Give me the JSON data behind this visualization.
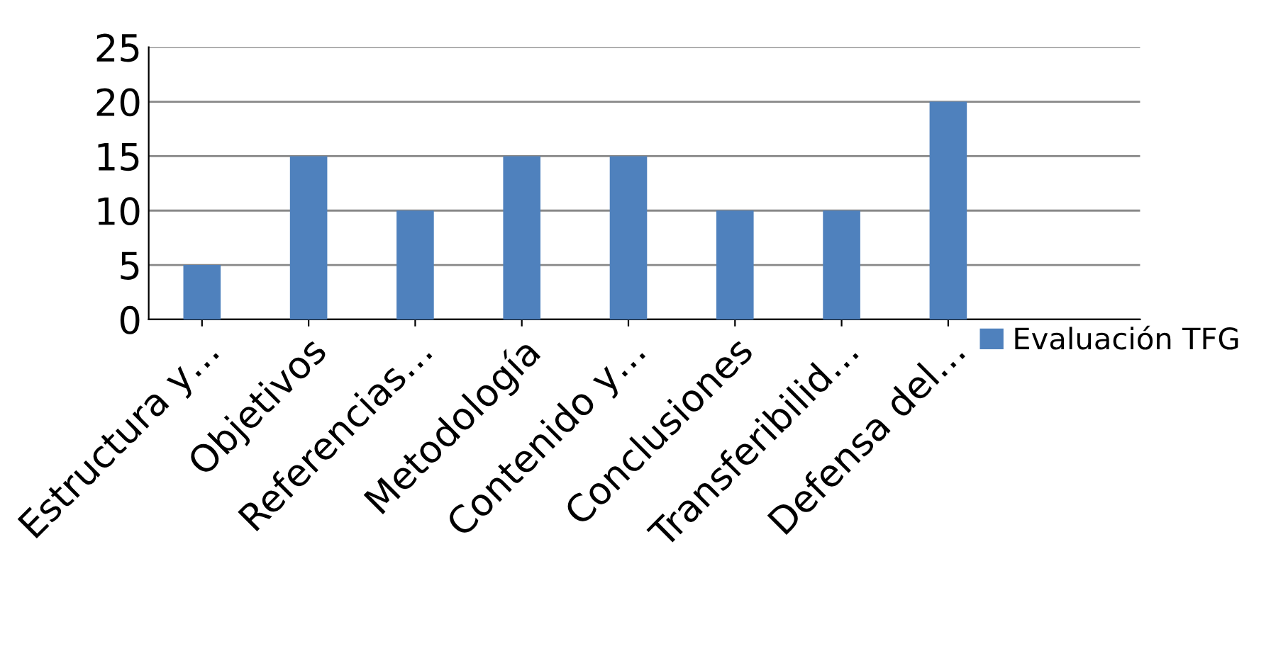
{
  "chart_data": {
    "type": "bar",
    "categories": [
      "Estructura y…",
      "Objetivos",
      "Referencias…",
      "Metodología",
      "Contenido y…",
      "Conclusiones",
      "Transferibilid…",
      "Defensa del…"
    ],
    "series": [
      {
        "name": "Evaluación TFG",
        "color": "#4f81bd",
        "values": [
          5,
          15,
          10,
          15,
          15,
          10,
          10,
          20
        ]
      }
    ],
    "ylim": [
      0,
      25
    ],
    "yticks": [
      0,
      5,
      10,
      15,
      20,
      25
    ],
    "grid": "y",
    "legend": "right"
  }
}
